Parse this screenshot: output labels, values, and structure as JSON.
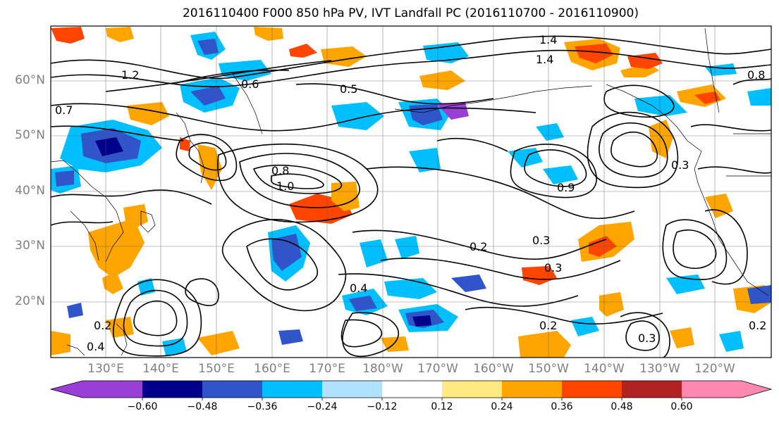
{
  "title": "2016110400 F000 850 hPa PV, IVT Landfall PC (2016110700 - 2016110900)",
  "lat_labels": [
    "60°N",
    "50°N",
    "40°N",
    "30°N",
    "20°N"
  ],
  "lon_labels": [
    "130°E",
    "140°E",
    "150°E",
    "160°E",
    "170°E",
    "180°W",
    "170°W",
    "160°W",
    "150°W",
    "140°W",
    "130°W",
    "120°W"
  ],
  "colorbar": {
    "colors": [
      "#9a3fd6",
      "#00008b",
      "#2f55c9",
      "#00bfff",
      "#b0e2ff",
      "#ffffff",
      "#ffe981",
      "#ffa500",
      "#ff4500",
      "#b22222",
      "#ff88b0"
    ],
    "tick_labels": [
      "−0.60",
      "−0.48",
      "−0.36",
      "−0.24",
      "−0.12",
      "0.12",
      "0.24",
      "0.36",
      "0.48",
      "0.60"
    ]
  },
  "contour_labels": [
    "1.4",
    "1.4",
    "1.2",
    "1.0",
    "0.8",
    "0.8",
    "0.7",
    "0.6",
    "0.5",
    "0.4",
    "0.4",
    "0.3",
    "0.3",
    "0.3",
    "0.3",
    "0.2",
    "0.2",
    "0.2",
    "0.2",
    "0.9"
  ]
}
